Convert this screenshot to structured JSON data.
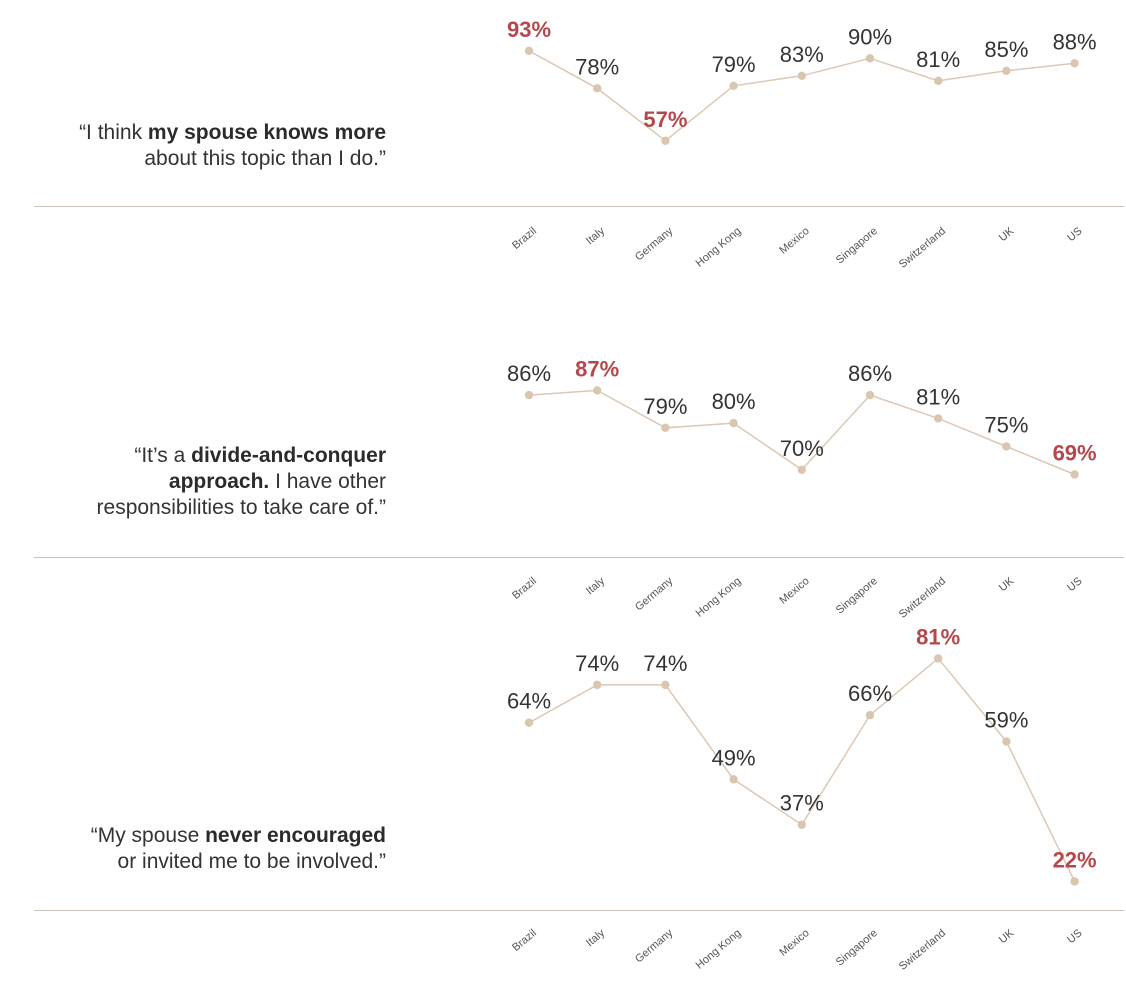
{
  "colors": {
    "line": "#dcc8b4",
    "point": "#d9c5b0",
    "highlight": "#b4484b",
    "text": "#333333",
    "rule": "#c9c3bb"
  },
  "chart_data": [
    {
      "type": "line",
      "quote": {
        "pre": "“I think ",
        "bold": "my spouse knows more",
        "post": "about this topic than I do.”"
      },
      "categories": [
        "Brazil",
        "Italy",
        "Germany",
        "Hong Kong",
        "Mexico",
        "Singapore",
        "Switzerland",
        "UK",
        "US"
      ],
      "values": [
        93,
        78,
        57,
        79,
        83,
        90,
        81,
        85,
        88
      ],
      "labels": [
        "93%",
        "78%",
        "57%",
        "79%",
        "83%",
        "90%",
        "81%",
        "85%",
        "88%"
      ],
      "highlight": [
        0,
        2
      ],
      "unit": "%"
    },
    {
      "type": "line",
      "quote": {
        "pre": "“It’s a ",
        "bold": "divide-and-conquer",
        "bold2": "approach.",
        "mid": " I have other",
        "post": "responsibilities to take care of.”"
      },
      "categories": [
        "Brazil",
        "Italy",
        "Germany",
        "Hong Kong",
        "Mexico",
        "Singapore",
        "Switzerland",
        "UK",
        "US"
      ],
      "values": [
        86,
        87,
        79,
        80,
        70,
        86,
        81,
        75,
        69
      ],
      "labels": [
        "86%",
        "87%",
        "79%",
        "80%",
        "70%",
        "86%",
        "81%",
        "75%",
        "69%"
      ],
      "highlight": [
        1,
        8
      ],
      "unit": "%"
    },
    {
      "type": "line",
      "quote": {
        "pre": "“My spouse ",
        "bold": "never encouraged",
        "post": "or invited me to be involved.”"
      },
      "categories": [
        "Brazil",
        "Italy",
        "Germany",
        "Hong Kong",
        "Mexico",
        "Singapore",
        "Switzerland",
        "UK",
        "US"
      ],
      "values": [
        64,
        74,
        74,
        49,
        37,
        66,
        81,
        59,
        22
      ],
      "labels": [
        "64%",
        "74%",
        "74%",
        "49%",
        "37%",
        "66%",
        "81%",
        "59%",
        "22%"
      ],
      "highlight": [
        6,
        8
      ],
      "unit": "%"
    }
  ]
}
